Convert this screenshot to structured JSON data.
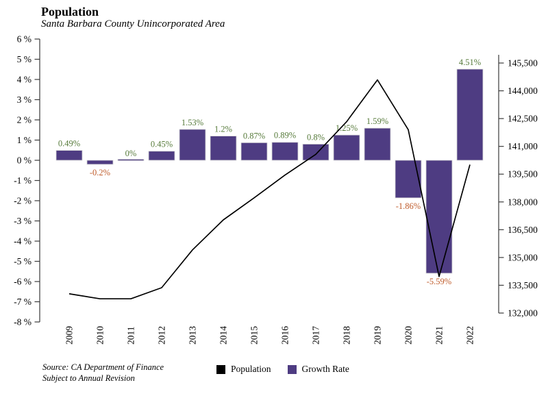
{
  "header": {
    "title": "Population",
    "subtitle": "Santa Barbara County Unincorporated Area"
  },
  "source": {
    "line1": "Source: CA Department of Finance",
    "line2": "Subject to Annual Revision"
  },
  "legend": {
    "items": [
      {
        "label": "Population",
        "color": "#000000"
      },
      {
        "label": "Growth Rate",
        "color": "#4e3c82"
      }
    ]
  },
  "chart_data": {
    "type": "bar+line combo",
    "title": "Population",
    "subtitle": "Santa Barbara County Unincorporated Area",
    "grid": false,
    "legend_position": "bottom",
    "categories": [
      "2009",
      "2010",
      "2011",
      "2012",
      "2013",
      "2014",
      "2015",
      "2016",
      "2017",
      "2018",
      "2019",
      "2020",
      "2021",
      "2022"
    ],
    "series": [
      {
        "name": "Growth Rate",
        "type": "bar",
        "axis": "left",
        "unit": "%",
        "color": "#4e3c82",
        "values": [
          0.49,
          -0.2,
          0,
          0.45,
          1.53,
          1.2,
          0.87,
          0.89,
          0.8,
          1.25,
          1.59,
          -1.86,
          -5.59,
          4.51
        ],
        "labels": [
          "0.49%",
          "-0.2%",
          "0%",
          "0.45%",
          "1.53%",
          "1.2%",
          "0.87%",
          "0.89%",
          "0.8%",
          "1.25%",
          "1.59%",
          "-1.86%",
          "-5.59%",
          "4.51%"
        ]
      },
      {
        "name": "Population",
        "type": "line",
        "axis": "right",
        "color": "#000000",
        "values": [
          133040,
          132770,
          132770,
          133370,
          135410,
          137030,
          138220,
          139450,
          140570,
          142330,
          144590,
          141900,
          133970,
          140010
        ]
      }
    ],
    "left_axis": {
      "range": [
        -8,
        6
      ],
      "tick_step": 1,
      "tick_labels": [
        "6 %",
        "5 %",
        "4 %",
        "3 %",
        "2 %",
        "1 %",
        "0 %",
        "-1 %",
        "-2 %",
        "-3 %",
        "-4 %",
        "-5 %",
        "-6 %",
        "-7 %",
        "-8 %"
      ]
    },
    "right_axis": {
      "range": [
        132000,
        145500
      ],
      "tick_step": 1500,
      "tick_labels": [
        "145,500",
        "144,000",
        "142,500",
        "141,000",
        "139,500",
        "138,000",
        "136,500",
        "135,000",
        "133,500",
        "132,000"
      ]
    },
    "label_colors": {
      "positive": "#567a3a",
      "negative": "#bf5b2a"
    }
  }
}
